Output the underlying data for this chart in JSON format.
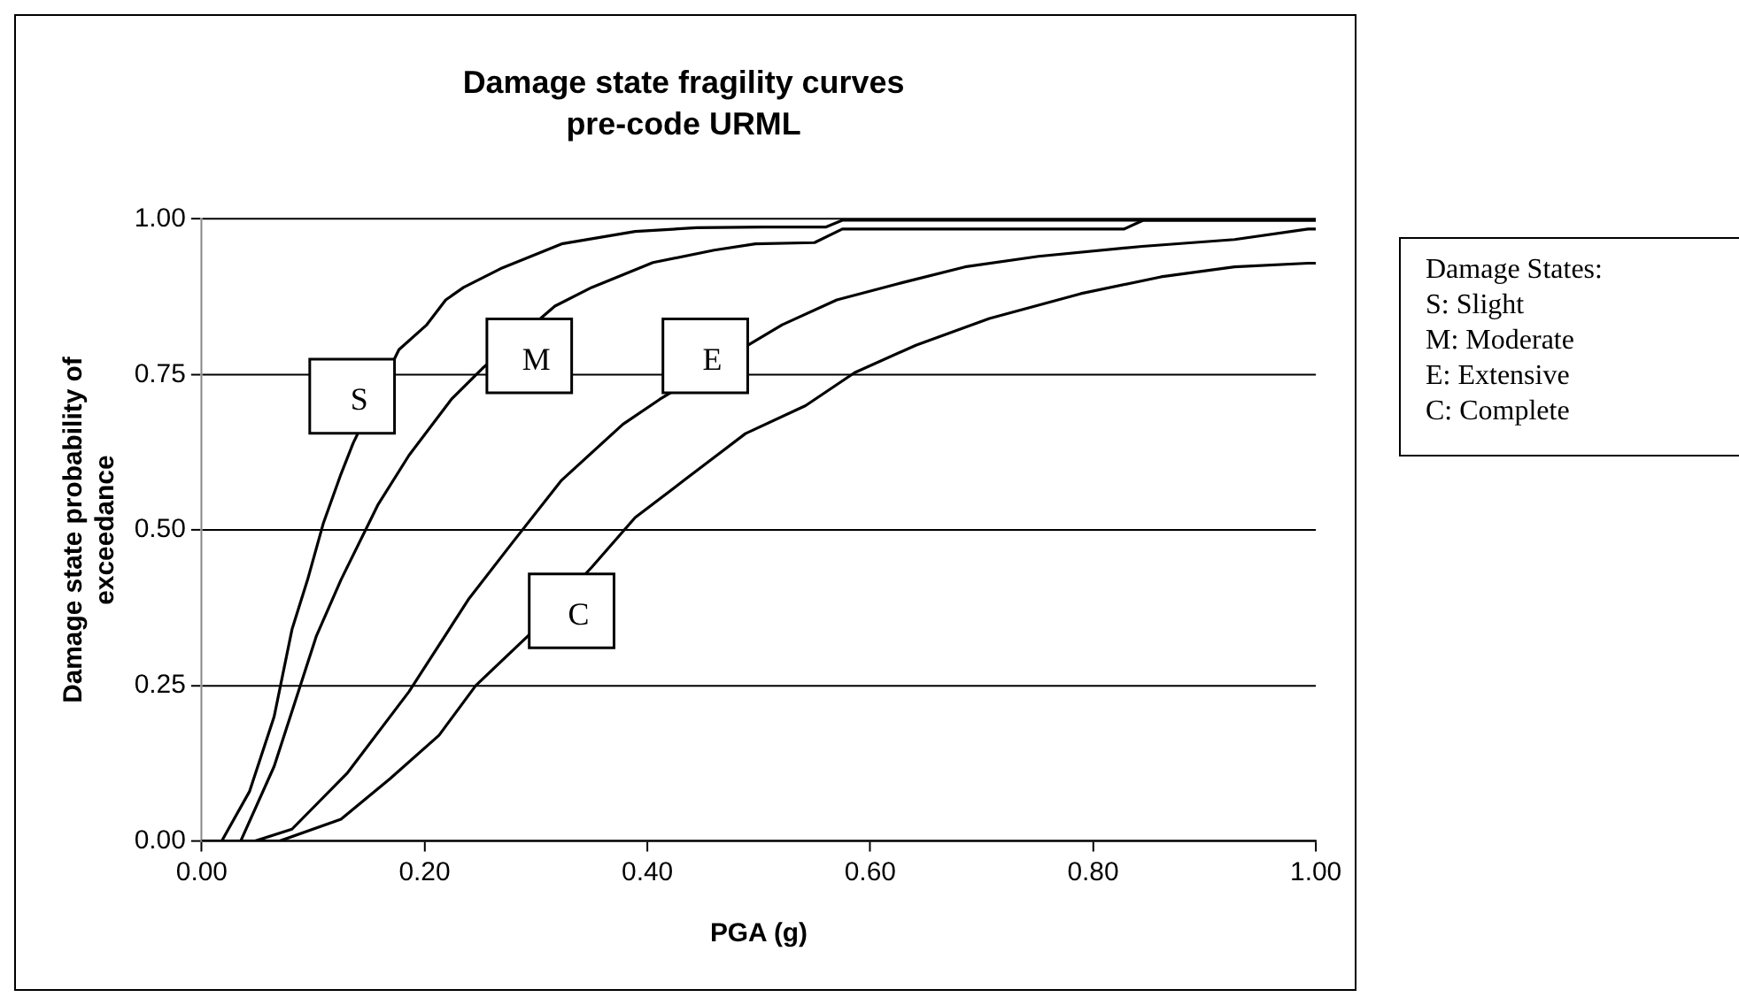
{
  "chart_data": {
    "type": "line",
    "title": "Damage state fragility curves",
    "subtitle": "pre-code URML",
    "xlabel": "PGA (g)",
    "ylabel": "Damage state probability of exceedance",
    "xlim": [
      0,
      1
    ],
    "xticks": [
      {
        "value": 0,
        "label": "0.00"
      },
      {
        "value": 0.2,
        "label": "0.20"
      },
      {
        "value": 0.4,
        "label": "0.40"
      },
      {
        "value": 0.6,
        "label": "0.60"
      },
      {
        "value": 0.8,
        "label": "0.80"
      },
      {
        "value": 1,
        "label": "1.00"
      }
    ],
    "ylim": [
      0,
      1
    ],
    "yticks": [
      {
        "value": 0,
        "label": "0.00"
      },
      {
        "value": 0.25,
        "label": "0.25"
      },
      {
        "value": 0.5,
        "label": "0.50"
      },
      {
        "value": 0.75,
        "label": "0.75"
      },
      {
        "value": 1,
        "label": "1.00"
      }
    ],
    "grid": "y",
    "legend": false,
    "marker": "none",
    "line_style": "solid",
    "series": [
      {
        "name": "S",
        "color": "#000000",
        "x": [
          0,
          0.018,
          0.043,
          0.065,
          0.081,
          0.095,
          0.109,
          0.125,
          0.136,
          0.177,
          0.202,
          0.219,
          0.235,
          0.268,
          0.323,
          0.389,
          0.444,
          0.504,
          0.56,
          0.575,
          0.7,
          0.85,
          1.0
        ],
        "values": [
          0,
          0,
          0.08,
          0.2,
          0.34,
          0.42,
          0.51,
          0.59,
          0.64,
          0.79,
          0.83,
          0.87,
          0.89,
          0.92,
          0.96,
          0.98,
          0.986,
          0.987,
          0.987,
          0.998,
          0.998,
          0.998,
          0.998
        ]
      },
      {
        "name": "M",
        "color": "#000000",
        "x": [
          0,
          0.035,
          0.065,
          0.103,
          0.125,
          0.158,
          0.186,
          0.224,
          0.252,
          0.317,
          0.35,
          0.405,
          0.46,
          0.497,
          0.55,
          0.575,
          0.7,
          0.828,
          0.845,
          1.0
        ],
        "values": [
          0,
          0,
          0.12,
          0.33,
          0.42,
          0.54,
          0.62,
          0.71,
          0.76,
          0.86,
          0.89,
          0.93,
          0.95,
          0.96,
          0.962,
          0.984,
          0.984,
          0.984,
          0.998,
          0.998
        ]
      },
      {
        "name": "E",
        "color": "#000000",
        "x": [
          0,
          0.048,
          0.081,
          0.131,
          0.186,
          0.24,
          0.279,
          0.323,
          0.378,
          0.411,
          0.493,
          0.521,
          0.57,
          0.625,
          0.685,
          0.751,
          0.844,
          0.927,
          0.993,
          1.0
        ],
        "values": [
          0,
          0,
          0.019,
          0.11,
          0.24,
          0.39,
          0.48,
          0.58,
          0.67,
          0.71,
          0.8,
          0.83,
          0.87,
          0.896,
          0.923,
          0.94,
          0.956,
          0.967,
          0.984,
          0.984
        ]
      },
      {
        "name": "C",
        "color": "#000000",
        "x": [
          0,
          0.07,
          0.125,
          0.169,
          0.213,
          0.246,
          0.293,
          0.35,
          0.389,
          0.433,
          0.488,
          0.542,
          0.586,
          0.641,
          0.707,
          0.789,
          0.861,
          0.927,
          0.993,
          1.0
        ],
        "values": [
          0,
          0,
          0.035,
          0.1,
          0.17,
          0.25,
          0.33,
          0.44,
          0.52,
          0.58,
          0.655,
          0.7,
          0.753,
          0.797,
          0.84,
          0.88,
          0.907,
          0.923,
          0.929,
          0.929
        ]
      }
    ],
    "annotations": [
      "Damage States:",
      "S: Slight",
      "M: Moderate",
      "E: Extensive",
      "C: Complete"
    ]
  }
}
